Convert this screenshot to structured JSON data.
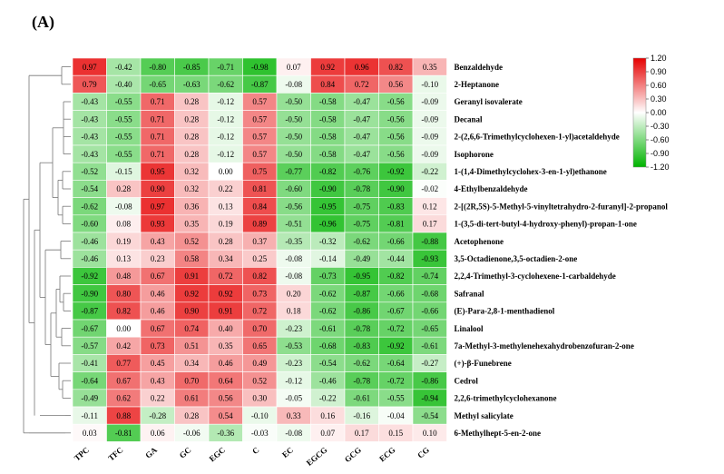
{
  "panel_label": "(A)",
  "colors": {
    "low": "#00b400",
    "mid": "#ffffff",
    "high": "#e60000"
  },
  "chart_data": {
    "type": "heatmap",
    "title": "",
    "columns": [
      "TPC",
      "TFC",
      "GA",
      "GC",
      "EGC",
      "C",
      "EC",
      "EGCG",
      "GCG",
      "ECG",
      "CG"
    ],
    "rows": [
      "Benzaldehyde",
      "2-Heptanone",
      "Geranyl isovalerate",
      "Decanal",
      "2-(2,6,6-Trimethylcyclohexen-1-yl)acetaldehyde",
      "Isophorone",
      "1-(1,4-Dimethylcyclohex-3-en-1-yl)ethanone",
      "4-Ethylbenzaldehyde",
      "2-[(2R,5S)-5-Methyl-5-vinyltetrahydro-2-furanyl]-2-propanol",
      "1-(3,5-di-tert-butyl-4-hydroxy-phenyl)-propan-1-one",
      "Acetophenone",
      "3,5-Octadienone,3,5-octadien-2-one",
      "2,2,4-Trimethyl-3-cyclohexene-1-carbaldehyde",
      "Safranal",
      "(E)-Para-2,8-1-menthadienol",
      "Linalool",
      "7a-Methyl-3-methylenehexahydrobenzofuran-2-one",
      "(+)-β-Funebrene",
      "Cedrol",
      "2,2,6-trimethylcyclohexanone",
      "Methyl salicylate",
      "6-Methylhept-5-en-2-one"
    ],
    "values": [
      [
        0.97,
        -0.42,
        -0.8,
        -0.85,
        -0.71,
        -0.98,
        0.07,
        0.92,
        0.96,
        0.82,
        0.35
      ],
      [
        0.79,
        -0.4,
        -0.65,
        -0.63,
        -0.62,
        -0.87,
        -0.08,
        0.84,
        0.72,
        0.56,
        -0.1
      ],
      [
        -0.43,
        -0.55,
        0.71,
        0.28,
        -0.12,
        0.57,
        -0.5,
        -0.58,
        -0.47,
        -0.56,
        -0.09
      ],
      [
        -0.43,
        -0.55,
        0.71,
        0.28,
        -0.12,
        0.57,
        -0.5,
        -0.58,
        -0.47,
        -0.56,
        -0.09
      ],
      [
        -0.43,
        -0.55,
        0.71,
        0.28,
        -0.12,
        0.57,
        -0.5,
        -0.58,
        -0.47,
        -0.56,
        -0.09
      ],
      [
        -0.43,
        -0.55,
        0.71,
        0.28,
        -0.12,
        0.57,
        -0.5,
        -0.58,
        -0.47,
        -0.56,
        -0.09
      ],
      [
        -0.52,
        -0.15,
        0.95,
        0.32,
        0.0,
        0.75,
        -0.77,
        -0.82,
        -0.76,
        -0.92,
        -0.22
      ],
      [
        -0.54,
        0.28,
        0.9,
        0.32,
        0.22,
        0.81,
        -0.6,
        -0.9,
        -0.78,
        -0.9,
        -0.02
      ],
      [
        -0.62,
        -0.08,
        0.97,
        0.36,
        0.13,
        0.84,
        -0.56,
        -0.95,
        -0.75,
        -0.83,
        0.12
      ],
      [
        -0.6,
        0.08,
        0.93,
        0.35,
        0.19,
        0.89,
        -0.51,
        -0.96,
        -0.75,
        -0.81,
        0.17
      ],
      [
        -0.46,
        0.19,
        0.43,
        0.52,
        0.28,
        0.37,
        -0.35,
        -0.32,
        -0.62,
        -0.66,
        -0.88
      ],
      [
        -0.46,
        0.13,
        0.23,
        0.58,
        0.34,
        0.25,
        -0.08,
        -0.14,
        -0.49,
        -0.44,
        -0.93
      ],
      [
        -0.92,
        0.48,
        0.67,
        0.91,
        0.72,
        0.82,
        -0.08,
        -0.73,
        -0.95,
        -0.82,
        -0.74
      ],
      [
        -0.9,
        0.8,
        0.46,
        0.92,
        0.92,
        0.73,
        0.2,
        -0.62,
        -0.87,
        -0.66,
        -0.68
      ],
      [
        -0.87,
        0.82,
        0.46,
        0.9,
        0.91,
        0.72,
        0.18,
        -0.62,
        -0.86,
        -0.67,
        -0.66
      ],
      [
        -0.67,
        0.0,
        0.67,
        0.74,
        0.4,
        0.7,
        -0.23,
        -0.61,
        -0.78,
        -0.72,
        -0.65
      ],
      [
        -0.57,
        0.42,
        0.73,
        0.51,
        0.35,
        0.65,
        -0.53,
        -0.68,
        -0.83,
        -0.92,
        -0.61
      ],
      [
        -0.41,
        0.77,
        0.45,
        0.34,
        0.46,
        0.49,
        -0.23,
        -0.54,
        -0.62,
        -0.64,
        -0.27
      ],
      [
        -0.64,
        0.67,
        0.43,
        0.7,
        0.64,
        0.52,
        -0.12,
        -0.46,
        -0.78,
        -0.72,
        -0.86
      ],
      [
        -0.49,
        0.62,
        0.22,
        0.61,
        0.56,
        0.3,
        -0.05,
        -0.22,
        -0.61,
        -0.55,
        -0.94
      ],
      [
        -0.11,
        0.88,
        -0.28,
        0.28,
        0.54,
        -0.1,
        0.33,
        0.16,
        -0.16,
        -0.04,
        -0.54
      ],
      [
        0.03,
        -0.81,
        0.06,
        -0.06,
        -0.36,
        -0.03,
        -0.08,
        0.07,
        0.17,
        0.15,
        0.1
      ]
    ],
    "colorbar": {
      "range": [
        -1.2,
        1.2
      ],
      "ticks": [
        "1.20",
        "0.90",
        "0.60",
        "0.30",
        "0.00",
        "-0.30",
        "-0.60",
        "-0.90",
        "-1.20"
      ]
    },
    "dendrogram": "row clustering (left side)"
  }
}
